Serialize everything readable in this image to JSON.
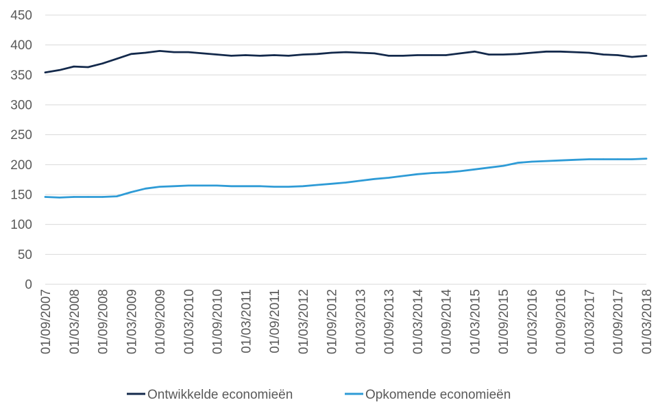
{
  "chart_data": {
    "type": "line",
    "x": [
      "01/09/2007",
      "01/12/2007",
      "01/03/2008",
      "01/06/2008",
      "01/09/2008",
      "01/12/2008",
      "01/03/2009",
      "01/06/2009",
      "01/09/2009",
      "01/12/2009",
      "01/03/2010",
      "01/06/2010",
      "01/09/2010",
      "01/12/2010",
      "01/03/2011",
      "01/06/2011",
      "01/09/2011",
      "01/12/2011",
      "01/03/2012",
      "01/06/2012",
      "01/09/2012",
      "01/12/2012",
      "01/03/2013",
      "01/06/2013",
      "01/09/2013",
      "01/12/2013",
      "01/03/2014",
      "01/06/2014",
      "01/09/2014",
      "01/12/2014",
      "01/03/2015",
      "01/06/2015",
      "01/09/2015",
      "01/12/2015",
      "01/03/2016",
      "01/06/2016",
      "01/09/2016",
      "01/12/2016",
      "01/03/2017",
      "01/06/2017",
      "01/09/2017",
      "01/12/2017",
      "01/03/2018"
    ],
    "x_tick_labels": [
      "01/09/2007",
      "01/03/2008",
      "01/09/2008",
      "01/03/2009",
      "01/09/2009",
      "01/03/2010",
      "01/09/2010",
      "01/03/2011",
      "01/09/2011",
      "01/03/2012",
      "01/09/2012",
      "01/03/2013",
      "01/09/2013",
      "01/03/2014",
      "01/09/2014",
      "01/03/2015",
      "01/09/2015",
      "01/03/2016",
      "01/09/2016",
      "01/03/2017",
      "01/09/2017",
      "01/03/2018"
    ],
    "series": [
      {
        "name": "Ontwikkelde economieën",
        "color": "#13294b",
        "values": [
          354,
          358,
          364,
          363,
          369,
          377,
          385,
          387,
          390,
          388,
          388,
          386,
          384,
          382,
          383,
          382,
          383,
          382,
          384,
          385,
          387,
          388,
          387,
          386,
          382,
          382,
          383,
          383,
          383,
          386,
          389,
          384,
          384,
          385,
          387,
          389,
          389,
          388,
          387,
          384,
          383,
          380,
          382
        ]
      },
      {
        "name": "Opkomende economieën",
        "color": "#2e9bd6",
        "values": [
          146,
          145,
          146,
          146,
          146,
          147,
          154,
          160,
          163,
          164,
          165,
          165,
          165,
          164,
          164,
          164,
          163,
          163,
          164,
          166,
          168,
          170,
          173,
          176,
          178,
          181,
          184,
          186,
          187,
          189,
          192,
          195,
          198,
          203,
          205,
          206,
          207,
          208,
          209,
          209,
          209,
          209,
          210
        ]
      }
    ],
    "y_ticks": [
      0,
      50,
      100,
      150,
      200,
      250,
      300,
      350,
      400,
      450
    ],
    "ylim": [
      0,
      450
    ],
    "title": "",
    "xlabel": "",
    "ylabel": "",
    "grid": "horizontal",
    "legend_position": "bottom"
  }
}
